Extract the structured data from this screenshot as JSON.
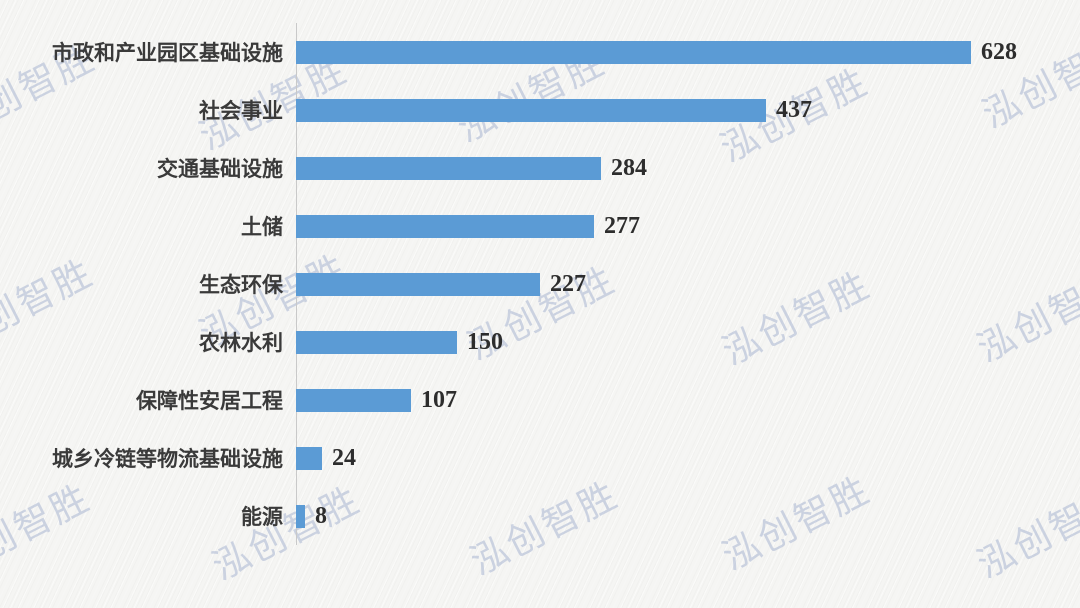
{
  "chart_data": {
    "type": "bar",
    "orientation": "horizontal",
    "categories": [
      "市政和产业园区基础设施",
      "社会事业",
      "交通基础设施",
      "土储",
      "生态环保",
      "农林水利",
      "保障性安居工程",
      "城乡冷链等物流基础设施",
      "能源"
    ],
    "values": [
      628,
      437,
      284,
      277,
      227,
      150,
      107,
      24,
      8
    ],
    "value_labels": [
      "628",
      "437",
      "284",
      "277",
      "227",
      "150",
      "107",
      "24",
      "8"
    ],
    "title": "",
    "xlabel": "",
    "ylabel": "",
    "xlim": [
      0,
      650
    ],
    "grid": false,
    "legend": false,
    "value_labels_shown": true
  },
  "watermark": {
    "text": "泓创智胜"
  },
  "colors": {
    "bar": "#5B9BD5",
    "background": "#f5f5f3",
    "axis_line": "#c9c9c9",
    "category_text": "#3a3a3a",
    "value_text": "#2d2d2d",
    "watermark": "#aab6d2"
  }
}
